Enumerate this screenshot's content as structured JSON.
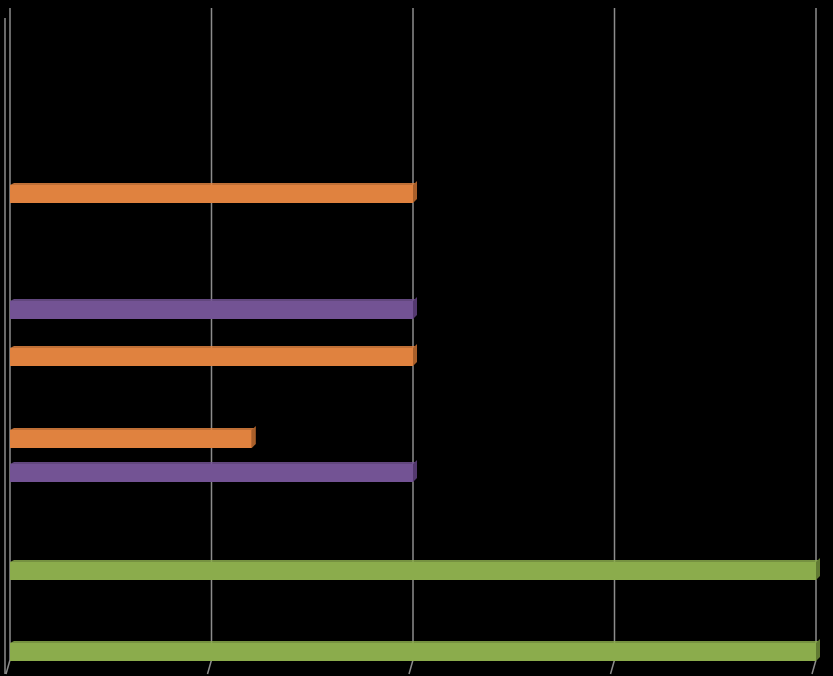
{
  "chart_data": {
    "type": "bar",
    "orientation": "horizontal",
    "style": "3d",
    "xlim": [
      0,
      4
    ],
    "grid": true,
    "legend": "none",
    "title": "",
    "xlabel": "",
    "ylabel": "",
    "colors": {
      "background": "#000000",
      "gridline": "#8c8c8c",
      "orange": "#e0823f",
      "orange_side": "#a95f2a",
      "purple": "#735394",
      "purple_side": "#54396f",
      "green": "#8bac4c",
      "green_side": "#617a33"
    },
    "bars": [
      {
        "value": 2,
        "color": "orange"
      },
      {
        "value": 2,
        "color": "purple"
      },
      {
        "value": 2,
        "color": "orange"
      },
      {
        "value": 1.2,
        "color": "orange"
      },
      {
        "value": 2,
        "color": "purple"
      },
      {
        "value": 4,
        "color": "green"
      },
      {
        "value": 4,
        "color": "green"
      }
    ]
  }
}
